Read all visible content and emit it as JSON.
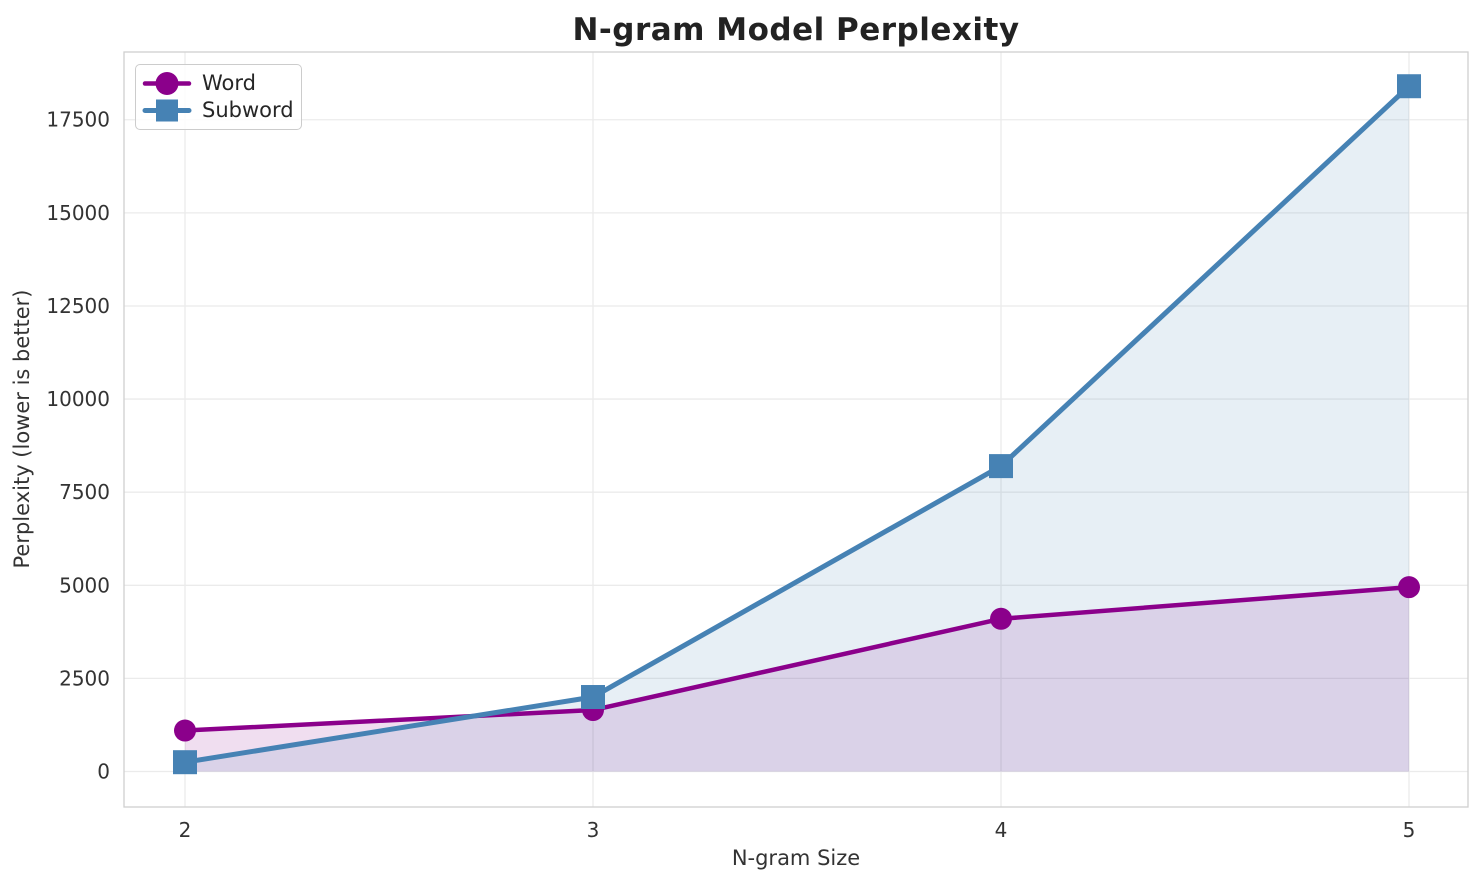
{
  "figure": {
    "background": "#FFFFFF"
  },
  "chart_data": {
    "type": "line",
    "title": "N-gram Model Perplexity",
    "xlabel": "N-gram Size",
    "ylabel": "Perplexity (lower is better)",
    "x": [
      2,
      3,
      4,
      5
    ],
    "xticks": [
      2,
      3,
      4,
      5
    ],
    "yticks": [
      0,
      2500,
      5000,
      7500,
      10000,
      12500,
      15000,
      17500
    ],
    "xlim": [
      1.8505,
      5.1446
    ],
    "ylim": [
      -953,
      19319
    ],
    "grid": true,
    "area_fill_opacity": 0.13,
    "legend": {
      "position": "upper-left",
      "labels": [
        "Word",
        "Subword"
      ]
    },
    "series": [
      {
        "name": "Word",
        "marker": "circle",
        "color": "#8B008B",
        "line_width": 4.5,
        "marker_size": 22,
        "values": [
          1100,
          1650,
          4100,
          4950
        ]
      },
      {
        "name": "Subword",
        "marker": "square",
        "color": "#4682B4",
        "line_width": 5,
        "marker_size": 24,
        "values": [
          250,
          2000,
          8200,
          18400
        ]
      }
    ],
    "colors": {
      "grid": "#EBEBEB",
      "spine": "#CFCFCF",
      "tick_text": "#333333",
      "title_text": "#222222"
    }
  }
}
